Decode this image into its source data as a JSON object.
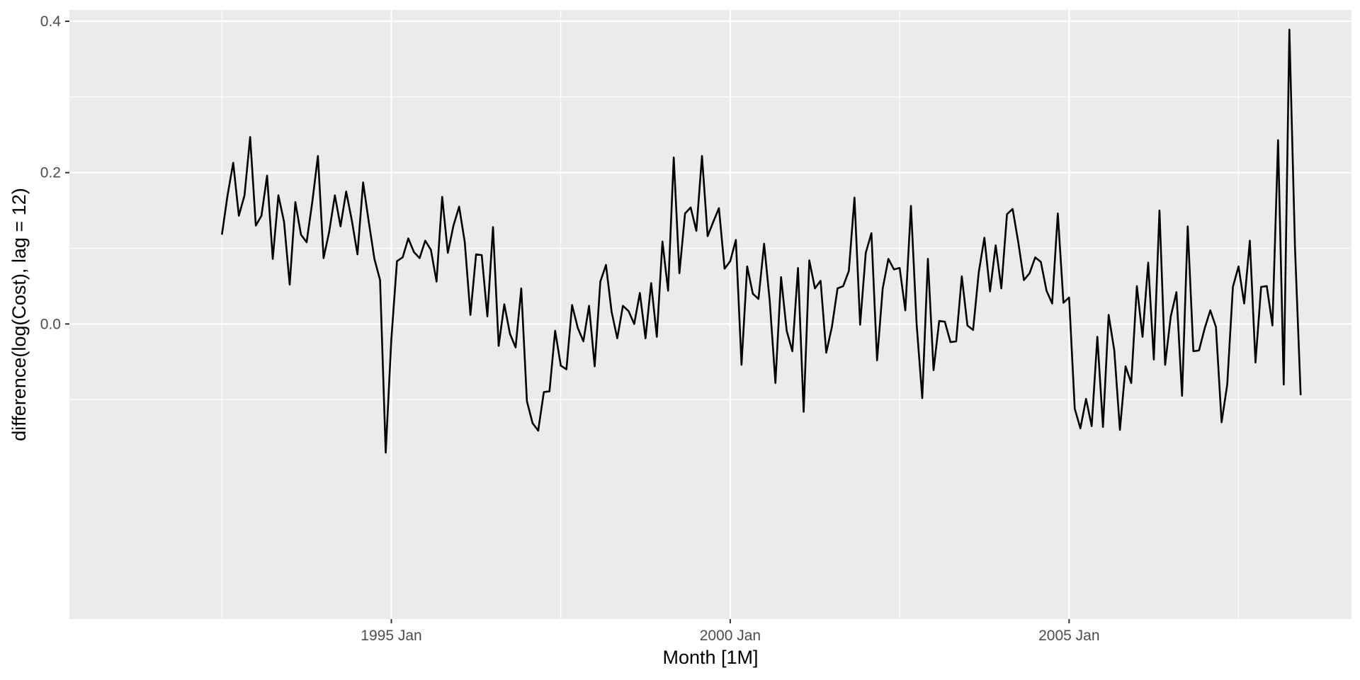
{
  "chart_data": {
    "type": "line",
    "title": "",
    "xlabel": "Month [1M]",
    "ylabel": "difference(log(Cost), lag = 12)",
    "xlim": [
      "1990-04",
      "2009-03"
    ],
    "ylim": [
      -0.39,
      0.415
    ],
    "x_ticks": [
      {
        "value": "1995-01",
        "label": "1995 Jan"
      },
      {
        "value": "2000-01",
        "label": "2000 Jan"
      },
      {
        "value": "2005-01",
        "label": "2005 Jan"
      }
    ],
    "y_ticks": [
      {
        "value": 0.0,
        "label": "0.0"
      },
      {
        "value": 0.2,
        "label": "0.2"
      },
      {
        "value": 0.4,
        "label": "0.4"
      }
    ],
    "grid": true,
    "background": "#ebebeb",
    "line_color": "#000000",
    "series": [
      {
        "start": "1992-07",
        "frequency": "monthly",
        "values": [
          0.118,
          0.17,
          0.213,
          0.143,
          0.17,
          0.247,
          0.13,
          0.143,
          0.196,
          0.086,
          0.17,
          0.135,
          0.052,
          0.161,
          0.118,
          0.108,
          0.161,
          0.222,
          0.087,
          0.122,
          0.17,
          0.129,
          0.175,
          0.137,
          0.092,
          0.187,
          0.135,
          0.086,
          0.058,
          -0.17,
          -0.02,
          0.083,
          0.088,
          0.113,
          0.095,
          0.087,
          0.11,
          0.098,
          0.056,
          0.168,
          0.094,
          0.13,
          0.155,
          0.108,
          0.012,
          0.092,
          0.091,
          0.01,
          0.128,
          -0.029,
          0.026,
          -0.013,
          -0.031,
          0.047,
          -0.102,
          -0.131,
          -0.141,
          -0.09,
          -0.089,
          -0.009,
          -0.055,
          -0.06,
          0.025,
          -0.005,
          -0.023,
          0.024,
          -0.056,
          0.056,
          0.078,
          0.016,
          -0.019,
          0.024,
          0.017,
          0.0,
          0.041,
          -0.019,
          0.054,
          -0.017,
          0.109,
          0.044,
          0.22,
          0.067,
          0.146,
          0.154,
          0.123,
          0.222,
          0.116,
          0.135,
          0.153,
          0.073,
          0.083,
          0.111,
          -0.054,
          0.076,
          0.04,
          0.033,
          0.106,
          0.03,
          -0.078,
          0.062,
          -0.009,
          -0.036,
          0.074,
          -0.116,
          0.084,
          0.047,
          0.057,
          -0.038,
          -0.004,
          0.047,
          0.05,
          0.07,
          0.167,
          -0.001,
          0.094,
          0.12,
          -0.048,
          0.047,
          0.086,
          0.072,
          0.074,
          0.018,
          0.156,
          0.0,
          -0.098,
          0.086,
          -0.061,
          0.004,
          0.003,
          -0.024,
          -0.023,
          0.063,
          -0.002,
          -0.008,
          0.068,
          0.114,
          0.043,
          0.104,
          0.047,
          0.145,
          0.152,
          0.108,
          0.058,
          0.067,
          0.088,
          0.082,
          0.044,
          0.027,
          0.146,
          0.028,
          0.035,
          -0.112,
          -0.138,
          -0.099,
          -0.135,
          -0.017,
          -0.136,
          0.012,
          -0.035,
          -0.14,
          -0.056,
          -0.078,
          0.05,
          -0.017,
          0.081,
          -0.047,
          0.15,
          -0.054,
          0.01,
          0.042,
          -0.095,
          0.129,
          -0.036,
          -0.035,
          -0.006,
          0.018,
          -0.004,
          -0.13,
          -0.08,
          0.049,
          0.076,
          0.027,
          0.11,
          -0.051,
          0.049,
          0.05,
          -0.002,
          0.243,
          -0.08,
          0.389,
          0.1,
          -0.094
        ]
      }
    ]
  }
}
